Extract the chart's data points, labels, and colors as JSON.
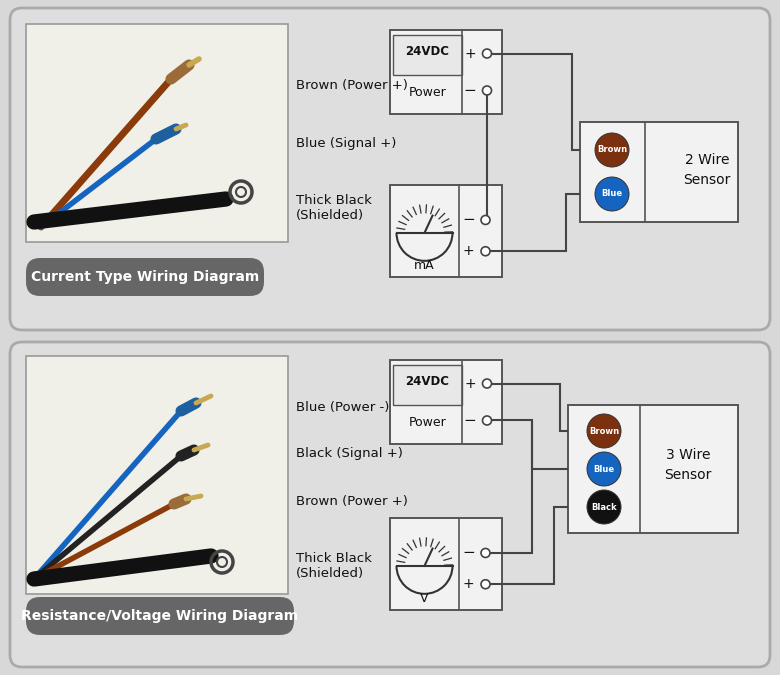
{
  "bg_outer": "#d8d8d8",
  "bg_panel": "#e0e0e0",
  "photo_bg": "#ffffff",
  "box_bg": "#f5f5f5",
  "box_border": "#666666",
  "wire_line": "#444444",
  "brown_wire": "#8B3A0A",
  "blue_wire": "#1565C0",
  "black_wire": "#111111",
  "label_bg": "#666666",
  "label_fg": "#ffffff",
  "panel1": {
    "title": "Current Type Wiring Diagram",
    "wire_labels": [
      "Brown (Power +)",
      "Blue (Signal +)",
      "Thick Black\n(Shielded)"
    ],
    "meter_label": "mA",
    "sensor_dots": [
      {
        "label": "Brown",
        "color": "#7B3010"
      },
      {
        "label": "Blue",
        "color": "#1565C0"
      }
    ],
    "sensor_title": "2 Wire\nSensor"
  },
  "panel2": {
    "title": "Resistance/Voltage Wiring Diagram",
    "wire_labels": [
      "Blue (Power -)",
      "Black (Signal +)",
      "Brown (Power +)",
      "Thick Black\n(Shielded)"
    ],
    "meter_label": "V",
    "sensor_dots": [
      {
        "label": "Brown",
        "color": "#7B3010"
      },
      {
        "label": "Blue",
        "color": "#1565C0"
      },
      {
        "label": "Black",
        "color": "#111111"
      }
    ],
    "sensor_title": "3 Wire\nSensor"
  }
}
